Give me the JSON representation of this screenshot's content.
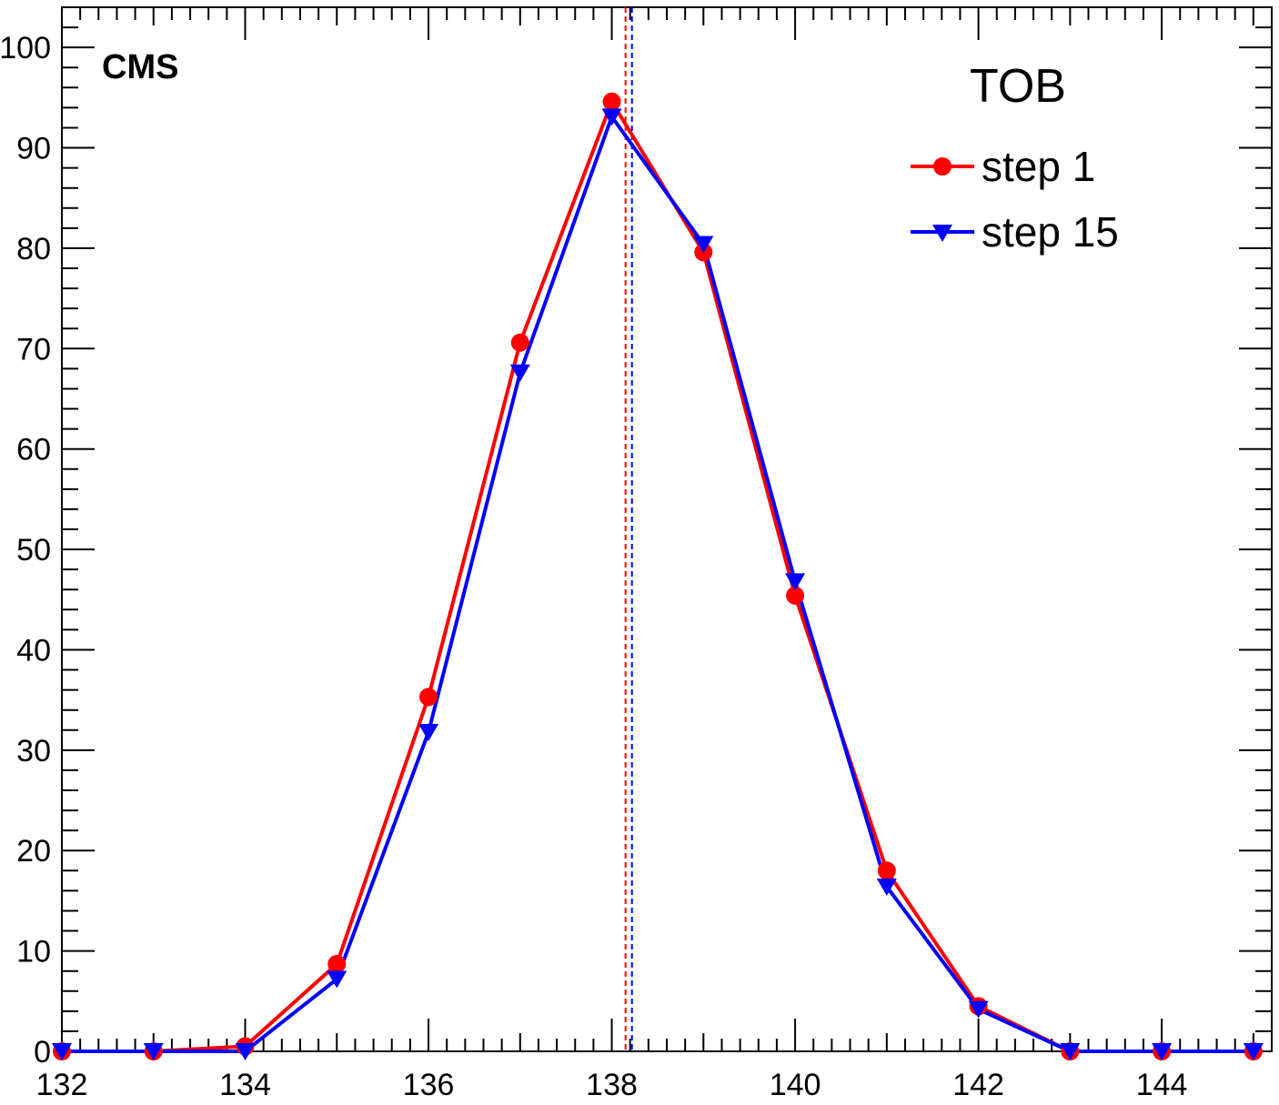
{
  "chart_data": {
    "type": "line",
    "title": "",
    "xlabel": "",
    "ylabel": "",
    "xlim": [
      132,
      145.2
    ],
    "ylim": [
      0,
      104
    ],
    "x_major_ticks": [
      132,
      134,
      136,
      138,
      140,
      142,
      144
    ],
    "y_major_ticks": [
      0,
      10,
      20,
      30,
      40,
      50,
      60,
      70,
      80,
      90,
      100
    ],
    "annotations": {
      "experiment": "CMS",
      "subdetector": "TOB"
    },
    "legend_position": "top-right",
    "grid": false,
    "series": [
      {
        "name": "step 1",
        "color": "#ff0000",
        "marker": "circle",
        "x": [
          132,
          133,
          134,
          135,
          136,
          137,
          138,
          139,
          140,
          141,
          142,
          143,
          144,
          145
        ],
        "y": [
          0,
          0,
          0.5,
          8.7,
          35.3,
          70.6,
          94.6,
          79.6,
          45.4,
          18,
          4.5,
          0,
          0,
          0
        ],
        "mean_line_x": 138.15
      },
      {
        "name": "step 15",
        "color": "#0000ff",
        "marker": "triangle-down",
        "x": [
          132,
          133,
          134,
          135,
          136,
          137,
          138,
          139,
          140,
          141,
          142,
          143,
          144,
          145
        ],
        "y": [
          0,
          0,
          0,
          7.2,
          31.8,
          67.6,
          93.1,
          80.4,
          46.8,
          16.4,
          4.2,
          0,
          0,
          0
        ],
        "mean_line_x": 138.22
      }
    ]
  }
}
